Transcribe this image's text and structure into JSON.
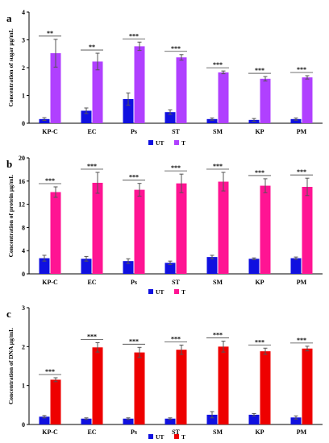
{
  "chart_data": [
    {
      "type": "bar",
      "panel": "a",
      "ylabel": "Concentration of sugar µg/mL",
      "ylim": [
        0,
        4
      ],
      "yticks": [
        0,
        1,
        2,
        3,
        4
      ],
      "categories": [
        "KP-C",
        "EC",
        "Ps",
        "ST",
        "SM",
        "KP",
        "PM"
      ],
      "series": [
        {
          "name": "UT",
          "color": "#1010e0",
          "values": [
            0.15,
            0.45,
            0.87,
            0.4,
            0.15,
            0.12,
            0.15
          ],
          "errors": [
            0.05,
            0.1,
            0.22,
            0.08,
            0.04,
            0.05,
            0.04
          ]
        },
        {
          "name": "T",
          "color": "#b040ff",
          "values": [
            2.52,
            2.22,
            2.77,
            2.37,
            1.83,
            1.6,
            1.65
          ],
          "errors": [
            0.5,
            0.3,
            0.15,
            0.1,
            0.05,
            0.08,
            0.06
          ]
        }
      ],
      "significance": [
        "**",
        "**",
        "***",
        "***",
        "***",
        "***",
        "***"
      ],
      "grid": false,
      "legend": "bottom"
    },
    {
      "type": "bar",
      "panel": "b",
      "ylabel": "Concentration of protein µg/mL",
      "ylim": [
        0,
        20
      ],
      "yticks": [
        0,
        4,
        8,
        12,
        16,
        20
      ],
      "categories": [
        "KP-C",
        "EC",
        "Ps",
        "ST",
        "SM",
        "KP",
        "PM"
      ],
      "series": [
        {
          "name": "UT",
          "color": "#1010e0",
          "values": [
            2.7,
            2.6,
            2.2,
            1.9,
            2.9,
            2.6,
            2.7
          ],
          "errors": [
            0.5,
            0.4,
            0.4,
            0.3,
            0.3,
            0.15,
            0.2
          ]
        },
        {
          "name": "T",
          "color": "#ff1493",
          "values": [
            14.1,
            15.7,
            14.5,
            15.6,
            15.9,
            15.2,
            15.0
          ],
          "errors": [
            0.9,
            1.8,
            1.1,
            1.6,
            1.6,
            1.2,
            1.5
          ]
        }
      ],
      "significance": [
        "***",
        "***",
        "***",
        "***",
        "***",
        "***",
        "***"
      ],
      "grid": false,
      "legend": "bottom"
    },
    {
      "type": "bar",
      "panel": "c",
      "ylabel": "Concentration of DNA µg/mL",
      "ylim": [
        0,
        3
      ],
      "yticks": [
        0,
        1,
        2,
        3
      ],
      "categories": [
        "KP-C",
        "EC",
        "Ps",
        "ST",
        "SM",
        "KP",
        "PM"
      ],
      "series": [
        {
          "name": "UT",
          "color": "#1010e0",
          "values": [
            0.2,
            0.15,
            0.15,
            0.15,
            0.25,
            0.25,
            0.18
          ],
          "errors": [
            0.03,
            0.02,
            0.02,
            0.02,
            0.08,
            0.03,
            0.04
          ]
        },
        {
          "name": "T",
          "color": "#ee0000",
          "values": [
            1.15,
            1.98,
            1.85,
            1.92,
            2.0,
            1.88,
            1.95
          ],
          "errors": [
            0.05,
            0.12,
            0.13,
            0.12,
            0.14,
            0.08,
            0.06
          ]
        }
      ],
      "significance": [
        "***",
        "***",
        "***",
        "***",
        "***",
        "***",
        "***"
      ],
      "grid": false,
      "legend": "bottom"
    }
  ]
}
